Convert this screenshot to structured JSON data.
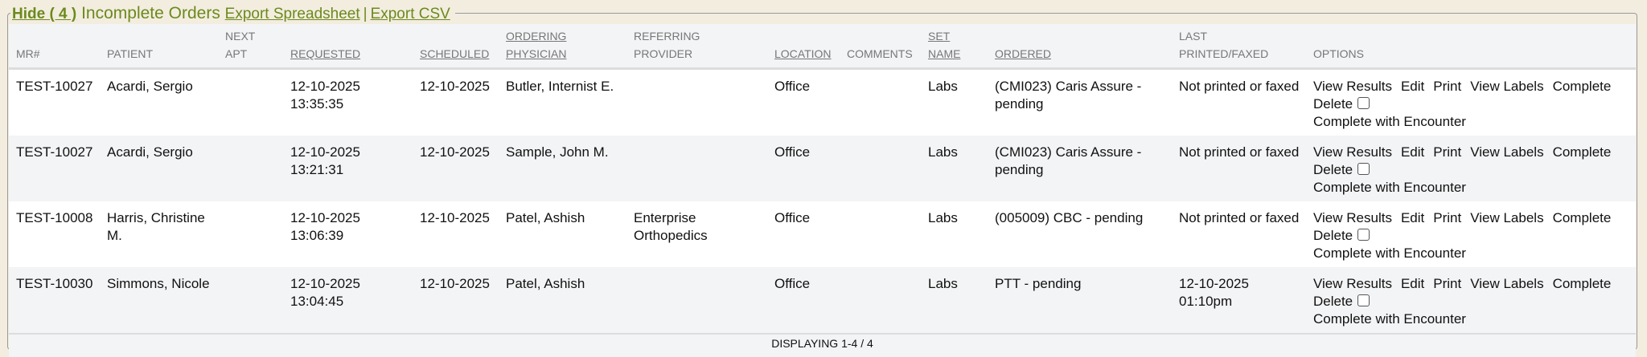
{
  "legend": {
    "hide_label": "Hide ( 4 )",
    "title": "Incomplete Orders",
    "export_spreadsheet": "Export Spreadsheet",
    "separator": "|",
    "export_csv": "Export CSV"
  },
  "columns": [
    {
      "l1": "",
      "l2": "MR#"
    },
    {
      "l1": "",
      "l2": "PATIENT"
    },
    {
      "l1": "NEXT",
      "l2": "APT"
    },
    {
      "l1": "",
      "l2": "REQUESTED"
    },
    {
      "l1": "",
      "l2": "SCHEDULED"
    },
    {
      "l1": "ORDERING",
      "l2": "PHYSICIAN"
    },
    {
      "l1": "REFERRING",
      "l2": "PROVIDER"
    },
    {
      "l1": "",
      "l2": "LOCATION"
    },
    {
      "l1": "",
      "l2": "COMMENTS"
    },
    {
      "l1": "SET",
      "l2": "NAME"
    },
    {
      "l1": "",
      "l2": "ORDERED"
    },
    {
      "l1": "LAST",
      "l2": "PRINTED/FAXED"
    },
    {
      "l1": "",
      "l2": "OPTIONS"
    }
  ],
  "options": {
    "view_results": "View Results",
    "edit": "Edit",
    "print": "Print",
    "view_labels": "View Labels",
    "complete": "Complete",
    "delete": "Delete",
    "complete_with_encounter": "Complete with Encounter"
  },
  "rows": [
    {
      "mr": "TEST-10027",
      "patient": "Acardi, Sergio",
      "next_apt": "",
      "requested": "12-10-2025 13:35:35",
      "scheduled": "12-10-2025",
      "physician": "Butler, Internist E.",
      "provider": "",
      "location": "Office",
      "comments": "",
      "set_name": "Labs",
      "ordered": "(CMI023) Caris Assure - pending",
      "last": "Not printed or faxed"
    },
    {
      "mr": "TEST-10027",
      "patient": "Acardi, Sergio",
      "next_apt": "",
      "requested": "12-10-2025 13:21:31",
      "scheduled": "12-10-2025",
      "physician": "Sample, John M.",
      "provider": "",
      "location": "Office",
      "comments": "",
      "set_name": "Labs",
      "ordered": "(CMI023) Caris Assure - pending",
      "last": "Not printed or faxed"
    },
    {
      "mr": "TEST-10008",
      "patient": "Harris, Christine M.",
      "next_apt": "",
      "requested": "12-10-2025 13:06:39",
      "scheduled": "12-10-2025",
      "physician": "Patel, Ashish",
      "provider": "Enterprise Orthopedics",
      "location": "Office",
      "comments": "",
      "set_name": "Labs",
      "ordered": "(005009) CBC - pending",
      "last": "Not printed or faxed"
    },
    {
      "mr": "TEST-10030",
      "patient": "Simmons, Nicole",
      "next_apt": "",
      "requested": "12-10-2025 13:04:45",
      "scheduled": "12-10-2025",
      "physician": "Patel, Ashish",
      "provider": "",
      "location": "Office",
      "comments": "",
      "set_name": "Labs",
      "ordered": "PTT - pending",
      "last": "12-10-2025 01:10pm"
    }
  ],
  "footer": "DISPLAYING 1-4 / 4"
}
